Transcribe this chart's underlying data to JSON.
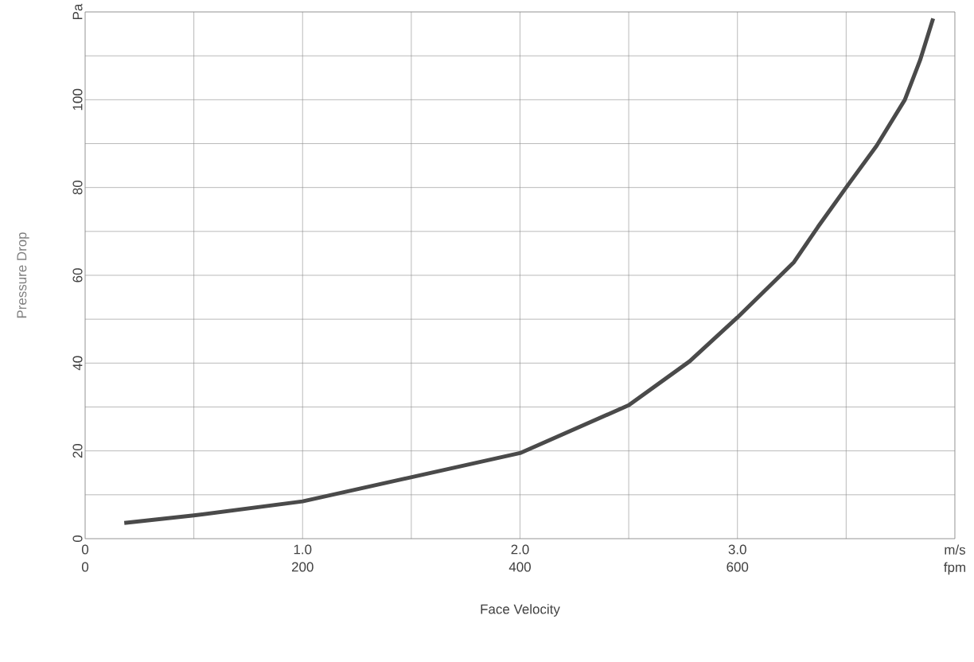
{
  "chart_data": {
    "type": "line",
    "xlabel": "Face Velocity",
    "ylabel": "Pressure Drop",
    "x": [
      0.18,
      0.5,
      1.0,
      1.5,
      2.0,
      2.5,
      2.78,
      3.0,
      3.26,
      3.37,
      3.5,
      3.64,
      3.77,
      3.84,
      3.9
    ],
    "series": [
      {
        "color": "#4a4a4a",
        "values": [
          3.6,
          5.3,
          8.5,
          14,
          19.5,
          30.4,
          40.4,
          50.4,
          63,
          71,
          80,
          89.5,
          100,
          109,
          118.5
        ]
      }
    ],
    "xlim": [
      0,
      4
    ],
    "ylim": [
      0,
      120
    ],
    "xticks": [
      0,
      {
        "value": 0.5,
        "label": null
      },
      {
        "value": 1,
        "label": "1.0"
      },
      {
        "value": 1.5,
        "label": null
      },
      {
        "value": 2,
        "label": "2.0"
      },
      {
        "value": 2.5,
        "label": null
      },
      {
        "value": 3,
        "label": "3.0"
      },
      {
        "value": 3.5,
        "label": null
      },
      {
        "value": 4,
        "label": "m/s"
      }
    ],
    "x2lim": [
      0,
      800
    ],
    "x2ticks": [
      0,
      200,
      400,
      600,
      {
        "value": 800,
        "label": "fpm"
      }
    ],
    "yticks": [
      0,
      {
        "value": 10,
        "label": null
      },
      20,
      {
        "value": 30,
        "label": null
      },
      40,
      {
        "value": 50,
        "label": null
      },
      60,
      {
        "value": 70,
        "label": null
      },
      80,
      {
        "value": 90,
        "label": null
      },
      100,
      {
        "value": 110,
        "label": null
      },
      {
        "value": 120,
        "label": "Pa"
      }
    ],
    "grid": true,
    "marker": "none",
    "line_style": "solid"
  }
}
